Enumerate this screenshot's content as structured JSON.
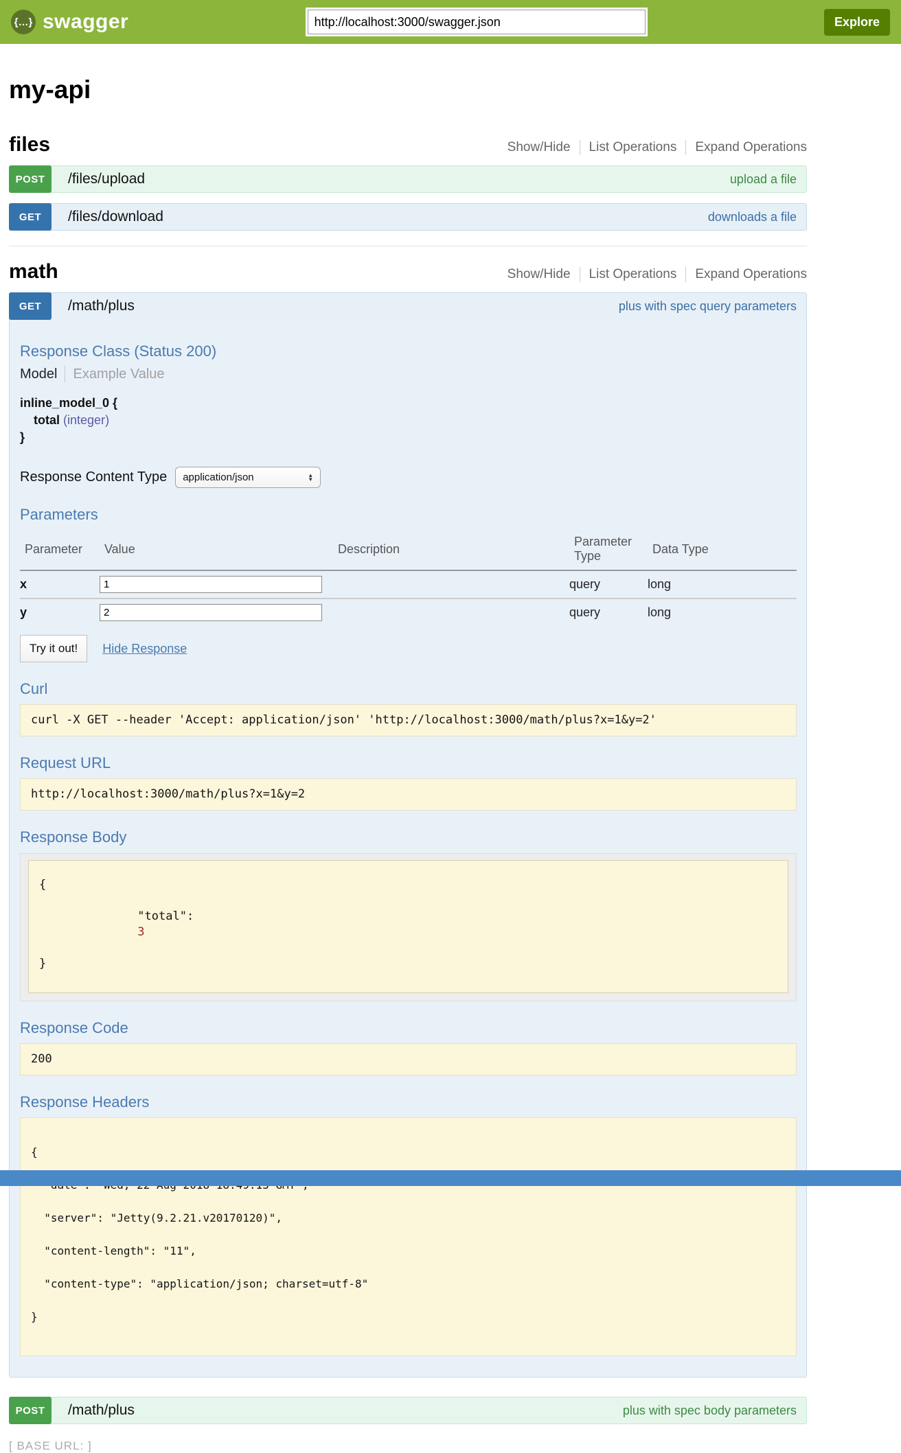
{
  "header": {
    "logo_glyph": "{…}",
    "brand": "swagger",
    "url_value": "http://localhost:3000/swagger.json",
    "explore_label": "Explore"
  },
  "api_title": "my-api",
  "controls": {
    "show_hide": "Show/Hide",
    "list_operations": "List Operations",
    "expand_operations": "Expand Operations"
  },
  "sections": {
    "files": {
      "title": "files"
    },
    "math": {
      "title": "math"
    }
  },
  "endpoints": {
    "files_upload": {
      "method": "POST",
      "path": "/files/upload",
      "summary": "upload a file"
    },
    "files_download": {
      "method": "GET",
      "path": "/files/download",
      "summary": "downloads a file"
    },
    "math_plus_get": {
      "method": "GET",
      "path": "/math/plus",
      "summary": "plus with spec query parameters"
    },
    "math_plus_post": {
      "method": "POST",
      "path": "/math/plus",
      "summary": "plus with spec body parameters"
    }
  },
  "detail": {
    "response_class": {
      "heading": "Response Class (Status 200)",
      "tab_model": "Model",
      "tab_example": "Example Value",
      "model_open": "inline_model_0 {",
      "prop_name": "total",
      "prop_type": "(integer)",
      "model_close": "}"
    },
    "content_type": {
      "label": "Response Content Type",
      "selected": "application/json"
    },
    "parameters": {
      "heading": "Parameters",
      "col_parameter": "Parameter",
      "col_value": "Value",
      "col_description": "Description",
      "col_param_type": "Parameter Type",
      "col_data_type": "Data Type",
      "rows": [
        {
          "name": "x",
          "value": "1",
          "description": "",
          "param_type": "query",
          "data_type": "long"
        },
        {
          "name": "y",
          "value": "2",
          "description": "",
          "param_type": "query",
          "data_type": "long"
        }
      ]
    },
    "try_it_label": "Try it out!",
    "hide_response_label": "Hide Response",
    "curl": {
      "heading": "Curl",
      "command": "curl -X GET --header 'Accept: application/json' 'http://localhost:3000/math/plus?x=1&y=2'"
    },
    "request_url": {
      "heading": "Request URL",
      "value": "http://localhost:3000/math/plus?x=1&y=2"
    },
    "response_body": {
      "heading": "Response Body",
      "line_open": "{",
      "key": "\"total\":",
      "value": "3",
      "line_close": "}"
    },
    "response_code": {
      "heading": "Response Code",
      "value": "200"
    },
    "response_headers": {
      "heading": "Response Headers",
      "lines": [
        "{",
        "  \"date\": \"Wed, 22 Aug 2018 18:49:13 GMT\",",
        "  \"server\": \"Jetty(9.2.21.v20170120)\",",
        "  \"content-length\": \"11\",",
        "  \"content-type\": \"application/json; charset=utf-8\"",
        "}"
      ]
    }
  },
  "icons": {
    "arrow_up": "▲",
    "arrow_down": "▼"
  },
  "footer": {
    "base_url": "[ BASE URL: ]"
  },
  "colors": {
    "header_green": "#8cb53c",
    "explore_green": "#547f00",
    "post_green": "#4aa14c",
    "get_blue": "#3573ad",
    "post_row_bg": "#e7f6ec",
    "get_row_bg": "#e7f0f7",
    "panel_bg": "#e9f1f8",
    "snippet_bg": "#fcf6db",
    "heading_blue": "#4a7ab0",
    "bottom_bar_blue": "#4989c8"
  }
}
